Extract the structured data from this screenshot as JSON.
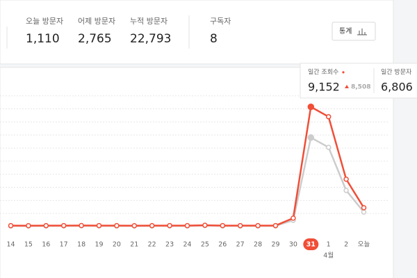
{
  "stats": [
    {
      "label": "오늘 방문자",
      "value": "1,110"
    },
    {
      "label": "어제 방문자",
      "value": "2,765"
    },
    {
      "label": "누적 방문자",
      "value": "22,793"
    },
    {
      "label": "구독자",
      "value": "8"
    }
  ],
  "button": "통계",
  "tooltip": [
    {
      "label": "일간 조회수",
      "value": "9,152",
      "change": "8,508"
    },
    {
      "label": "일간 방문자",
      "value": "6,806"
    }
  ],
  "chart_data": {
    "type": "line",
    "categories": [
      "14",
      "15",
      "16",
      "17",
      "18",
      "19",
      "20",
      "21",
      "22",
      "23",
      "24",
      "25",
      "26",
      "27",
      "28",
      "29",
      "30",
      "31",
      "1",
      "2",
      "오늘"
    ],
    "highlight": "31",
    "month_label": "4월",
    "series": [
      {
        "color": "#cccccc",
        "values": [
          50,
          45,
          50,
          55,
          60,
          55,
          50,
          45,
          50,
          55,
          50,
          80,
          55,
          50,
          50,
          55,
          480,
          6806,
          6060,
          2765,
          1110
        ]
      },
      {
        "color": "#f04e37",
        "values": [
          70,
          65,
          70,
          75,
          80,
          75,
          70,
          65,
          70,
          75,
          70,
          100,
          75,
          70,
          70,
          75,
          644,
          9152,
          8400,
          3620,
          1440
        ]
      }
    ],
    "ylim": [
      0,
      11000
    ],
    "yticks": [
      1000,
      2000,
      3000,
      4000,
      5000,
      6000,
      7000,
      8000,
      9000,
      10000
    ],
    "grid": true
  }
}
